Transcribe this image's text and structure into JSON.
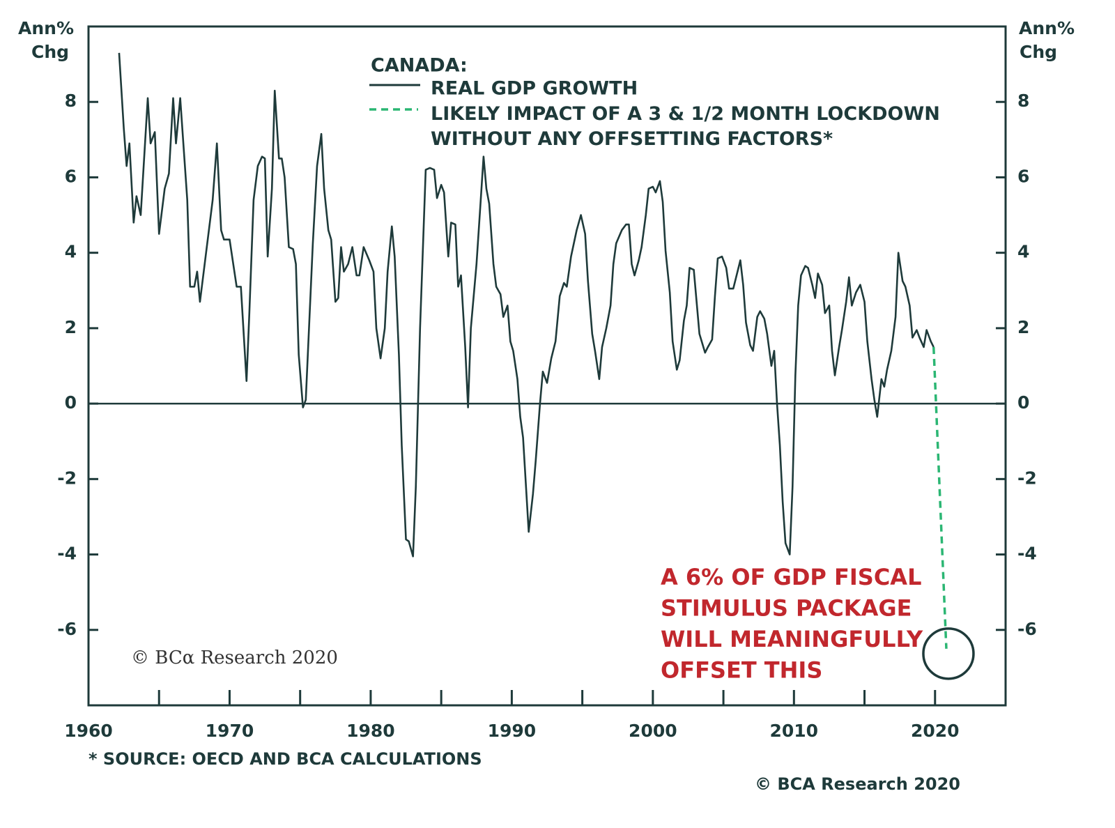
{
  "chart_data": {
    "type": "line",
    "title": "CANADA:",
    "y_label": [
      "Ann%",
      "Chg"
    ],
    "y2_label": [
      "Ann%",
      "Chg"
    ],
    "xlim": [
      1960,
      2025
    ],
    "xticks": [
      1960,
      1970,
      1980,
      1990,
      2000,
      2010,
      2020
    ],
    "xminor_ticks": [
      1965,
      1975,
      1985,
      1995,
      2005,
      2015
    ],
    "ylim": [
      -8,
      10
    ],
    "yticks": [
      -6,
      -4,
      -2,
      0,
      2,
      4,
      6,
      8
    ],
    "y2lim": [
      -8,
      10
    ],
    "y2ticks": [
      -6,
      -4,
      -2,
      0,
      2,
      4,
      6,
      8
    ],
    "hline": 0,
    "grid": false,
    "series": [
      {
        "name": "REAL GDP GROWTH",
        "color": "#1e3a3a",
        "dashed": false,
        "x": [
          1962.17,
          1962.5,
          1962.7,
          1962.9,
          1963.2,
          1963.4,
          1963.7,
          1964.2,
          1964.4,
          1964.7,
          1965.0,
          1965.4,
          1965.7,
          1966.0,
          1966.2,
          1966.5,
          1967.0,
          1967.2,
          1967.5,
          1967.7,
          1967.9,
          1968.3,
          1968.8,
          1969.1,
          1969.4,
          1969.6,
          1970.0,
          1970.5,
          1970.8,
          1971.2,
          1971.4,
          1971.7,
          1972.0,
          1972.3,
          1972.5,
          1972.7,
          1973.0,
          1973.2,
          1973.5,
          1973.7,
          1973.9,
          1974.2,
          1974.5,
          1974.7,
          1974.9,
          1975.2,
          1975.4,
          1975.9,
          1976.2,
          1976.5,
          1976.7,
          1977.0,
          1977.2,
          1977.5,
          1977.7,
          1977.9,
          1978.1,
          1978.4,
          1978.7,
          1979.0,
          1979.2,
          1979.5,
          1979.9,
          1980.2,
          1980.4,
          1980.7,
          1981.0,
          1981.2,
          1981.5,
          1981.7,
          1982.0,
          1982.2,
          1982.5,
          1982.7,
          1983.0,
          1983.2,
          1983.5,
          1983.9,
          1984.2,
          1984.5,
          1984.7,
          1985.0,
          1985.2,
          1985.5,
          1985.7,
          1986.0,
          1986.2,
          1986.4,
          1986.7,
          1986.9,
          1987.1,
          1987.5,
          1987.8,
          1988.0,
          1988.2,
          1988.4,
          1988.7,
          1988.9,
          1989.2,
          1989.4,
          1989.7,
          1989.9,
          1990.1,
          1990.4,
          1990.6,
          1990.8,
          1991.2,
          1991.5,
          1991.7,
          1992.0,
          1992.2,
          1992.5,
          1992.8,
          1993.1,
          1993.4,
          1993.7,
          1993.9,
          1994.2,
          1994.6,
          1994.9,
          1995.2,
          1995.4,
          1995.7,
          1995.9,
          1996.2,
          1996.4,
          1996.7,
          1997.0,
          1997.2,
          1997.4,
          1997.8,
          1998.1,
          1998.3,
          1998.5,
          1998.7,
          1999.0,
          1999.2,
          1999.5,
          1999.7,
          2000.0,
          2000.2,
          2000.5,
          2000.7,
          2000.9,
          2001.2,
          2001.4,
          2001.7,
          2001.9,
          2002.2,
          2002.4,
          2002.6,
          2002.9,
          2003.1,
          2003.3,
          2003.7,
          2003.9,
          2004.2,
          2004.4,
          2004.6,
          2004.9,
          2005.2,
          2005.4,
          2005.7,
          2005.9,
          2006.2,
          2006.4,
          2006.6,
          2006.9,
          2007.1,
          2007.4,
          2007.6,
          2007.9,
          2008.1,
          2008.4,
          2008.6,
          2008.8,
          2009.0,
          2009.2,
          2009.4,
          2009.7,
          2009.9,
          2010.1,
          2010.3,
          2010.5,
          2010.8,
          2011.0,
          2011.3,
          2011.5,
          2011.7,
          2012.0,
          2012.2,
          2012.5,
          2012.7,
          2012.9,
          2013.2,
          2013.4,
          2013.7,
          2013.9,
          2014.1,
          2014.4,
          2014.7,
          2015.0,
          2015.2,
          2015.5,
          2015.7,
          2015.9,
          2016.2,
          2016.4,
          2016.6,
          2016.9,
          2017.2,
          2017.4,
          2017.7,
          2017.9,
          2018.2,
          2018.4,
          2018.7,
          2018.9,
          2019.2,
          2019.4,
          2019.7,
          2019.9
        ],
        "values": [
          9.3,
          7.3,
          6.3,
          6.9,
          4.8,
          5.5,
          5.0,
          8.1,
          6.9,
          7.2,
          4.5,
          5.7,
          6.1,
          8.1,
          6.9,
          8.1,
          5.4,
          3.1,
          3.1,
          3.5,
          2.7,
          3.9,
          5.4,
          6.9,
          4.6,
          4.35,
          4.35,
          3.1,
          3.1,
          0.6,
          2.4,
          5.4,
          6.3,
          6.55,
          6.5,
          3.9,
          5.7,
          8.3,
          6.5,
          6.5,
          6.0,
          4.15,
          4.1,
          3.7,
          1.3,
          -0.1,
          0.1,
          4.25,
          6.3,
          7.15,
          5.7,
          4.6,
          4.35,
          2.7,
          2.8,
          4.15,
          3.5,
          3.7,
          4.15,
          3.4,
          3.4,
          4.15,
          3.8,
          3.5,
          2.0,
          1.2,
          2.0,
          3.5,
          4.7,
          3.9,
          1.3,
          -1.1,
          -3.6,
          -3.65,
          -4.05,
          -2.2,
          2.0,
          6.2,
          6.25,
          6.2,
          5.45,
          5.8,
          5.6,
          3.9,
          4.8,
          4.75,
          3.1,
          3.4,
          1.5,
          -0.1,
          2.0,
          3.7,
          5.4,
          6.55,
          5.7,
          5.3,
          3.7,
          3.1,
          2.9,
          2.3,
          2.6,
          1.65,
          1.4,
          0.65,
          -0.35,
          -0.9,
          -3.4,
          -2.4,
          -1.5,
          0.0,
          0.85,
          0.55,
          1.2,
          1.65,
          2.85,
          3.2,
          3.1,
          3.9,
          4.6,
          5.0,
          4.5,
          3.25,
          1.85,
          1.4,
          0.65,
          1.5,
          2.0,
          2.6,
          3.7,
          4.25,
          4.6,
          4.75,
          4.75,
          3.7,
          3.4,
          3.8,
          4.15,
          5.0,
          5.7,
          5.75,
          5.6,
          5.9,
          5.35,
          4.05,
          2.95,
          1.65,
          0.9,
          1.15,
          2.2,
          2.6,
          3.6,
          3.55,
          2.7,
          1.85,
          1.35,
          1.5,
          1.7,
          2.85,
          3.85,
          3.9,
          3.6,
          3.05,
          3.05,
          3.35,
          3.8,
          3.15,
          2.15,
          1.55,
          1.4,
          2.3,
          2.45,
          2.25,
          1.85,
          1.0,
          1.4,
          0.0,
          -1.1,
          -2.6,
          -3.7,
          -4.0,
          -2.2,
          0.75,
          2.6,
          3.4,
          3.65,
          3.6,
          3.15,
          2.8,
          3.45,
          3.15,
          2.4,
          2.6,
          1.4,
          0.75,
          1.5,
          1.95,
          2.7,
          3.35,
          2.6,
          2.95,
          3.15,
          2.7,
          1.65,
          0.65,
          0.1,
          -0.35,
          0.65,
          0.45,
          0.9,
          1.4,
          2.3,
          4.0,
          3.25,
          3.1,
          2.6,
          1.75,
          1.95,
          1.75,
          1.5,
          1.95,
          1.65,
          1.5
        ]
      },
      {
        "name": "LIKELY IMPACT OF A 3 & 1/2 MONTH LOCKDOWN WITHOUT ANY OFFSETTING FACTORS*",
        "color": "#2bb673",
        "dashed": true,
        "x": [
          2019.9,
          2020.8
        ],
        "values": [
          1.5,
          -6.5
        ]
      }
    ],
    "annotation": [
      "A 6% OF GDP FISCAL",
      "STIMULUS PACKAGE",
      "WILL MEANINGFULLY",
      "OFFSET THIS"
    ],
    "annotation_color": "#c1272d",
    "watermark": "© BCα Research 2020",
    "footnote": "* SOURCE: OECD AND BCA CALCULATIONS",
    "copyright": "© BCA Research 2020"
  }
}
